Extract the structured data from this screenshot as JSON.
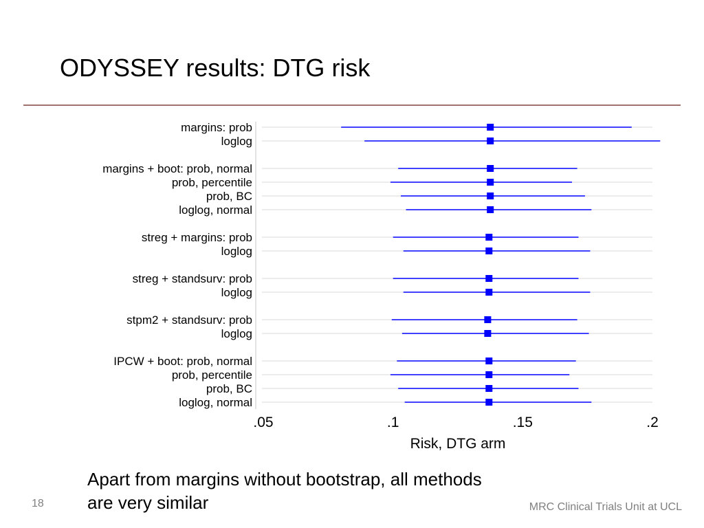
{
  "slide": {
    "title": "ODYSSEY results: DTG risk",
    "caption_line1": "Apart from margins without bootstrap, all methods",
    "caption_line2": "are very similar",
    "number": "18",
    "org": "MRC Clinical Trials Unit at UCL"
  },
  "colors": {
    "title_rule": "#a0706c",
    "series": "#0000ff",
    "row_line": "#d9d9d9",
    "footer_text": "#7f7f7f"
  },
  "chart_data": {
    "type": "forest",
    "xlabel": "Risk, DTG arm",
    "xlim": [
      0.05,
      0.2
    ],
    "xticks": [
      0.05,
      0.1,
      0.15,
      0.2
    ],
    "xtick_labels": [
      ".05",
      ".1",
      ".15",
      ".2"
    ],
    "grid": "horizontal row lines",
    "rows": [
      {
        "label": "margins: prob",
        "estimate": 0.1375,
        "lower": 0.08,
        "upper": 0.192
      },
      {
        "label": "loglog",
        "estimate": 0.1375,
        "lower": 0.089,
        "upper": 0.203
      },
      {
        "label": "margins + boot: prob, normal",
        "estimate": 0.1375,
        "lower": 0.102,
        "upper": 0.171
      },
      {
        "label": "prob, percentile",
        "estimate": 0.1375,
        "lower": 0.099,
        "upper": 0.169
      },
      {
        "label": "prob, BC",
        "estimate": 0.1375,
        "lower": 0.103,
        "upper": 0.174
      },
      {
        "label": "loglog, normal",
        "estimate": 0.1375,
        "lower": 0.105,
        "upper": 0.1765
      },
      {
        "label": "streg + margins: prob",
        "estimate": 0.137,
        "lower": 0.1,
        "upper": 0.1715
      },
      {
        "label": "loglog",
        "estimate": 0.137,
        "lower": 0.104,
        "upper": 0.176
      },
      {
        "label": "streg + standsurv: prob",
        "estimate": 0.137,
        "lower": 0.1,
        "upper": 0.1715
      },
      {
        "label": "loglog",
        "estimate": 0.137,
        "lower": 0.104,
        "upper": 0.176
      },
      {
        "label": "stpm2 + standsurv: prob",
        "estimate": 0.1365,
        "lower": 0.0995,
        "upper": 0.171
      },
      {
        "label": "loglog",
        "estimate": 0.1365,
        "lower": 0.1035,
        "upper": 0.1755
      },
      {
        "label": "IPCW + boot: prob, normal",
        "estimate": 0.137,
        "lower": 0.1015,
        "upper": 0.1705
      },
      {
        "label": "prob, percentile",
        "estimate": 0.137,
        "lower": 0.099,
        "upper": 0.168
      },
      {
        "label": "prob, BC",
        "estimate": 0.137,
        "lower": 0.102,
        "upper": 0.1715
      },
      {
        "label": "loglog, normal",
        "estimate": 0.137,
        "lower": 0.1045,
        "upper": 0.1765
      }
    ]
  }
}
